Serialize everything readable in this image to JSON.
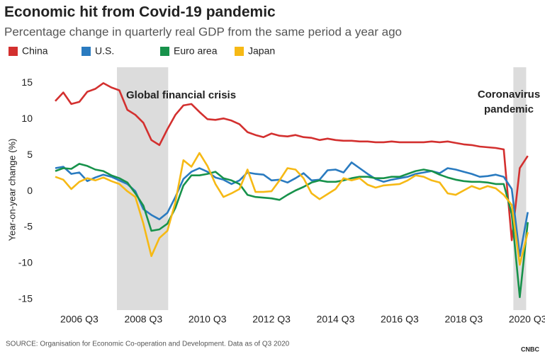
{
  "chart_data": {
    "type": "line",
    "title": "Economic hit from Covid-19 pandemic",
    "subtitle": "Percentage change in quarterly real GDP from the same period a year ago",
    "y_label": "Year-on-year change (%)",
    "source": "SOURCE: Organisation for Economic Co-operation and Development. Data as of Q3 2020",
    "logo": "CNBC",
    "categories": [
      null,
      null,
      null,
      "2006 Q3",
      null,
      null,
      null,
      null,
      null,
      null,
      null,
      "2008 Q3",
      null,
      null,
      null,
      null,
      null,
      null,
      null,
      "2010 Q3",
      null,
      null,
      null,
      null,
      null,
      null,
      null,
      "2012 Q3",
      null,
      null,
      null,
      null,
      null,
      null,
      null,
      "2014 Q3",
      null,
      null,
      null,
      null,
      null,
      null,
      null,
      "2016 Q3",
      null,
      null,
      null,
      null,
      null,
      null,
      null,
      "2018 Q3",
      null,
      null,
      null,
      null,
      null,
      null,
      null,
      "2020 Q3"
    ],
    "series": [
      {
        "name": "China",
        "color": "#d3302f",
        "values": [
          12.5,
          13.7,
          12.1,
          12.4,
          13.8,
          14.2,
          15.0,
          14.4,
          14.0,
          11.3,
          10.6,
          9.5,
          7.1,
          6.4,
          8.6,
          10.6,
          11.9,
          12.1,
          11.0,
          10.0,
          9.9,
          10.1,
          9.8,
          9.3,
          8.2,
          7.8,
          7.5,
          8.0,
          7.7,
          7.6,
          7.8,
          7.5,
          7.4,
          7.1,
          7.3,
          7.1,
          7.0,
          7.0,
          6.9,
          6.9,
          6.8,
          6.8,
          6.9,
          6.8,
          6.8,
          6.8,
          6.8,
          6.9,
          6.8,
          6.9,
          6.7,
          6.5,
          6.4,
          6.2,
          6.1,
          6.0,
          5.8,
          -6.8,
          3.2,
          4.9
        ]
      },
      {
        "name": "U.S.",
        "color": "#2a7bc0",
        "values": [
          3.2,
          3.4,
          2.4,
          2.6,
          1.4,
          1.9,
          2.3,
          2.0,
          1.5,
          1.0,
          0.0,
          -2.5,
          -3.3,
          -3.9,
          -3.0,
          -0.8,
          1.7,
          2.7,
          3.2,
          2.7,
          1.9,
          1.6,
          1.0,
          1.5,
          2.6,
          2.4,
          2.3,
          1.5,
          1.6,
          1.2,
          1.8,
          2.5,
          1.5,
          1.6,
          2.9,
          3.0,
          2.6,
          4.0,
          3.2,
          2.4,
          1.7,
          1.3,
          1.6,
          1.8,
          2.0,
          2.4,
          2.6,
          2.8,
          2.5,
          3.2,
          3.0,
          2.7,
          2.4,
          2.0,
          2.1,
          2.3,
          2.0,
          0.3,
          -9.0,
          -2.9
        ]
      },
      {
        "name": "Euro area",
        "color": "#17924b",
        "values": [
          2.8,
          3.2,
          3.1,
          3.8,
          3.5,
          3.0,
          2.8,
          2.2,
          1.8,
          1.2,
          -0.3,
          -2.0,
          -5.5,
          -5.3,
          -4.5,
          -2.3,
          0.8,
          2.2,
          2.2,
          2.4,
          2.7,
          1.8,
          1.5,
          1.0,
          -0.5,
          -0.8,
          -0.9,
          -1.0,
          -1.2,
          -0.5,
          0.1,
          0.6,
          1.2,
          1.5,
          1.3,
          1.3,
          1.5,
          1.8,
          2.0,
          2.0,
          1.8,
          1.8,
          2.0,
          2.0,
          2.4,
          2.8,
          3.0,
          2.8,
          2.3,
          1.9,
          1.6,
          1.4,
          1.3,
          1.3,
          1.2,
          1.0,
          1.0,
          -3.2,
          -14.7,
          -4.3
        ]
      },
      {
        "name": "Japan",
        "color": "#f6b915",
        "values": [
          2.0,
          1.6,
          0.3,
          1.3,
          1.8,
          1.5,
          1.9,
          1.4,
          1.0,
          0.0,
          -0.8,
          -4.5,
          -9.0,
          -6.5,
          -5.5,
          -1.5,
          4.3,
          3.4,
          5.3,
          3.5,
          1.0,
          -0.8,
          -0.3,
          0.3,
          3.0,
          -0.1,
          -0.1,
          0.0,
          1.5,
          3.2,
          3.0,
          1.8,
          -0.3,
          -1.1,
          -0.4,
          0.3,
          1.8,
          1.5,
          1.8,
          0.9,
          0.5,
          0.8,
          0.9,
          1.0,
          1.5,
          2.2,
          2.0,
          1.5,
          1.2,
          -0.3,
          -0.5,
          0.1,
          0.7,
          0.3,
          0.7,
          0.4,
          -0.5,
          -1.9,
          -10.2,
          -5.7
        ]
      }
    ],
    "ylim": [
      -16.5,
      17.2
    ],
    "yticks": [
      -15,
      -10,
      -5,
      0,
      5,
      10,
      15
    ],
    "grid": false,
    "shaded_regions": [
      {
        "text": [
          "Global financial crisis"
        ],
        "from": 7.7,
        "to": 14.1
      },
      {
        "text": [
          "Coronavirus",
          "pandemic"
        ],
        "from": 57.2,
        "to": 58.8
      }
    ]
  }
}
